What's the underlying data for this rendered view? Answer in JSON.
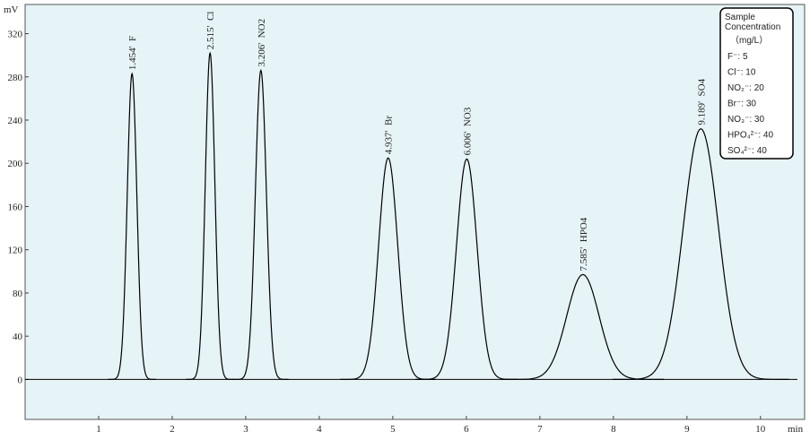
{
  "chart_data": {
    "type": "chromatogram",
    "y_unit": "mV",
    "x_unit": "min",
    "xlim": [
      0,
      10.6
    ],
    "xticks": [
      1,
      2,
      3,
      4,
      5,
      6,
      7,
      8,
      9,
      10
    ],
    "ylim": [
      -37,
      347
    ],
    "yticks": [
      0,
      40,
      80,
      120,
      160,
      200,
      240,
      280,
      320
    ],
    "color": "#000000",
    "background": "#e6f3f7",
    "peaks": [
      {
        "label": "1.454'  F",
        "rt": 1.454,
        "height": 283,
        "width": 0.065
      },
      {
        "label": "2.515'  Cl",
        "rt": 2.515,
        "height": 302,
        "width": 0.065
      },
      {
        "label": "3.206'  NO2",
        "rt": 3.206,
        "height": 286,
        "width": 0.075
      },
      {
        "label": "4.937'  Br",
        "rt": 4.937,
        "height": 205,
        "width": 0.13
      },
      {
        "label": "6.006'  NO3",
        "rt": 6.006,
        "height": 204,
        "width": 0.14
      },
      {
        "label": "7.585'  HPO4",
        "rt": 7.585,
        "height": 97,
        "width": 0.22
      },
      {
        "label": "9.189'  SO4",
        "rt": 9.189,
        "height": 232,
        "width": 0.24
      }
    ],
    "legend": {
      "title": "Sample Concentration",
      "unit": "（mg/L）",
      "items": [
        "F⁻: 5",
        "Cl⁻: 10",
        "NO₂⁻: 20",
        "Br⁻: 30",
        "NO₃⁻: 30",
        "HPO₄²⁻: 40",
        "SO₄²⁻: 40"
      ]
    }
  }
}
